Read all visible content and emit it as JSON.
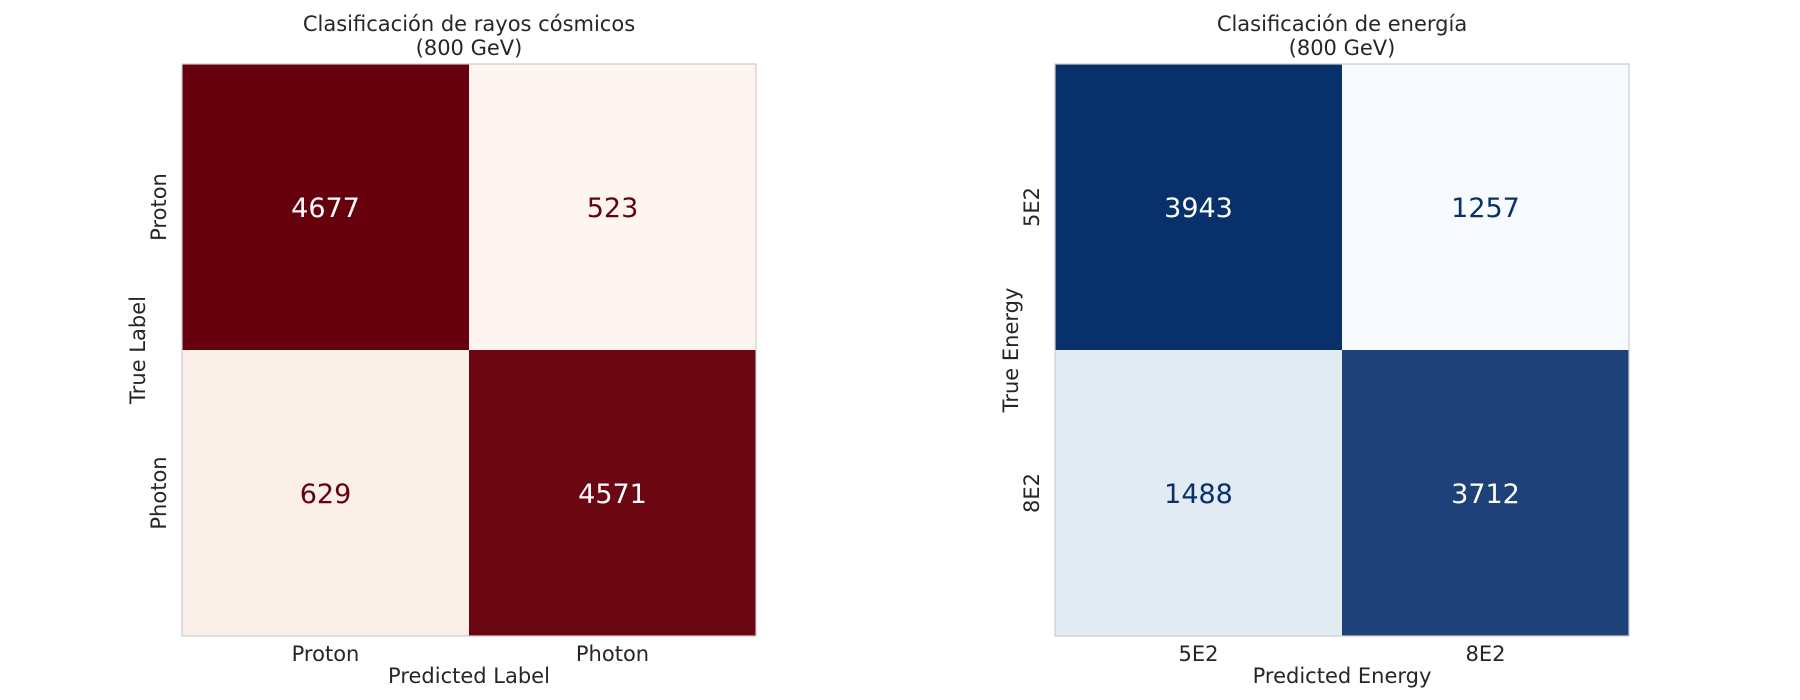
{
  "chart_data": [
    {
      "type": "heatmap",
      "title": "Clasificación de rayos cósmicos",
      "subtitle": "(800 GeV)",
      "xlabel": "Predicted Label",
      "ylabel": "True Label",
      "x_categories": [
        "Proton",
        "Photon"
      ],
      "y_categories": [
        "Proton",
        "Photon"
      ],
      "values": [
        [
          4677,
          523
        ],
        [
          629,
          4571
        ]
      ],
      "colormap": "Reds",
      "colors": {
        "low": "#fff5f0",
        "high": "#67000d",
        "text_dark": "#67000d",
        "text_light": "#ffffff"
      },
      "grid": false
    },
    {
      "type": "heatmap",
      "title": "Clasificación de energía",
      "subtitle": "(800 GeV)",
      "xlabel": "Predicted Energy",
      "ylabel": "True Energy",
      "x_categories": [
        "5E2",
        "8E2"
      ],
      "y_categories": [
        "5E2",
        "8E2"
      ],
      "values": [
        [
          3943,
          1257
        ],
        [
          1488,
          3712
        ]
      ],
      "colormap": "Blues",
      "colors": {
        "low": "#f7fbff",
        "high": "#08306b",
        "text_dark": "#08306b",
        "text_light": "#ffffff"
      },
      "grid": false
    }
  ]
}
